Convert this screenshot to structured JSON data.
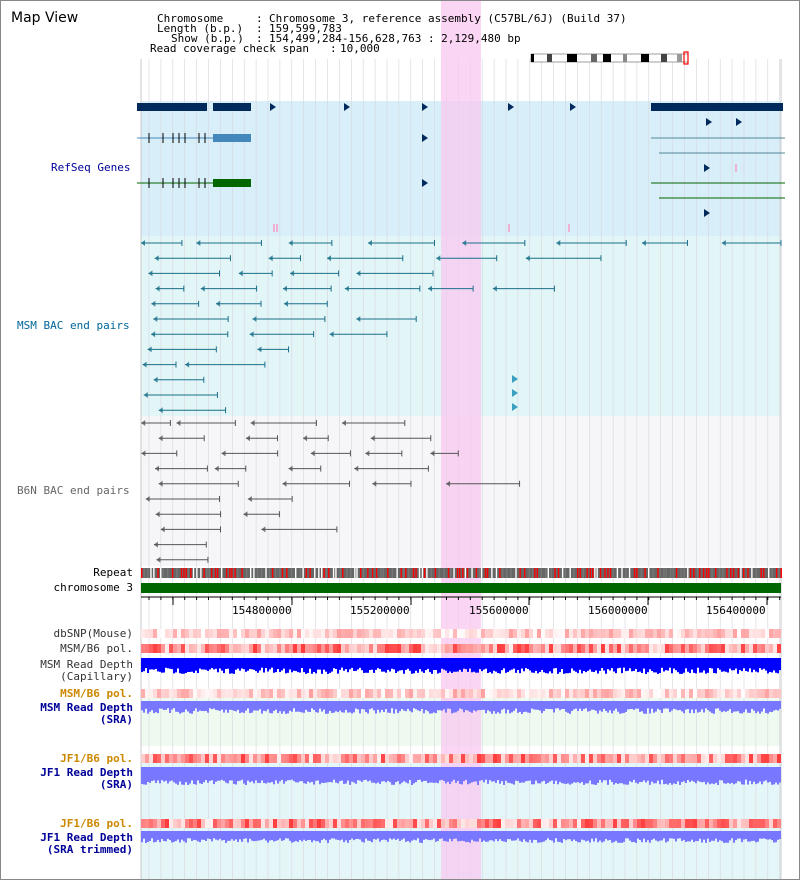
{
  "title": "Map View",
  "info": {
    "chromosome_key": "Chromosome",
    "chromosome_val": "Chromosome 3, reference assembly (C57BL/6J) (Build 37)",
    "length_key": "Length (b.p.)",
    "length_val": "159,599,783",
    "show_key": "Show (b.p.)",
    "show_val": "154,499,284-156,628,763 : 2,129,480 bp",
    "coverage_key": "Read coverage check span",
    "coverage_val": "10,000"
  },
  "tracks": {
    "refseq": "RefSeq Genes",
    "msm_bac": "MSM BAC end pairs",
    "b6n_bac": "B6N BAC end pairs",
    "repeat": "Repeat",
    "chromosome": "chromosome 3",
    "dbsnp": "dbSNP(Mouse)",
    "msm_b6_pol": "MSM/B6 pol.",
    "msm_read_depth_cap": "MSM Read Depth\n(Capillary)",
    "msm_b6_pol_sra": "MSM/B6 pol.",
    "msm_read_depth_sra": "MSM Read Depth\n(SRA)",
    "jf1_b6_pol": "JF1/B6 pol.",
    "jf1_read_depth_sra": "JF1 Read Depth\n(SRA)",
    "jf1_b6_pol_trim": "JF1/B6 pol.",
    "jf1_read_depth_trim": "JF1 Read Depth\n(SRA trimmed)"
  },
  "ruler": {
    "ticks": [
      "154800000",
      "155200000",
      "155600000",
      "156000000",
      "156400000"
    ]
  },
  "colors": {
    "refseq_label": "#000099",
    "msm_label": "#006699",
    "b6n_label": "#666666",
    "sra_label": "#000099",
    "pol_label_orange": "#cc8800",
    "highlight": "#f8c8f0",
    "refseq_dark": "#00295c",
    "refseq_mid": "#4488bb",
    "refseq_green": "#006600",
    "chromosome_bar": "#006600",
    "depth_blue": "#0000ff",
    "depth_light": "#7777ff"
  }
}
